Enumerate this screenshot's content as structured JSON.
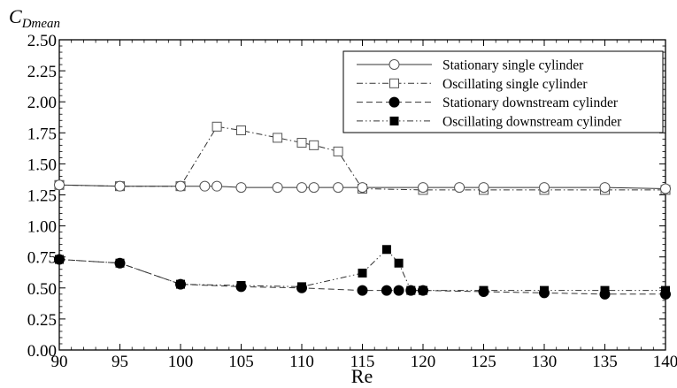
{
  "chart_data": {
    "type": "line",
    "title": "",
    "ylabel": "C",
    "ylabel_subscript": "Dmean",
    "xlabel": "Re",
    "xlim": [
      90,
      140
    ],
    "ylim": [
      0,
      2.5
    ],
    "xticks": [
      90,
      95,
      100,
      105,
      110,
      115,
      120,
      125,
      130,
      135,
      140
    ],
    "xtick_labels": [
      "90",
      "95",
      "100",
      "105",
      "110",
      "115",
      "120",
      "125",
      "130",
      "135",
      "140"
    ],
    "yticks": [
      0,
      0.25,
      0.5,
      0.75,
      1.0,
      1.25,
      1.5,
      1.75,
      2.0,
      2.25,
      2.5
    ],
    "ytick_labels": [
      "0.00",
      "0.25",
      "0.50",
      "0.75",
      "1.00",
      "1.25",
      "1.50",
      "1.75",
      "2.00",
      "2.25",
      "2.50"
    ],
    "grid": false,
    "legend_position": "top-right",
    "series": [
      {
        "name": "Stationary single cylinder",
        "line_style": "solid",
        "marker": "open-circle",
        "color": "#000000",
        "x": [
          90,
          95,
          100,
          102,
          103,
          105,
          108,
          110,
          111,
          113,
          115,
          120,
          123,
          125,
          130,
          135,
          140
        ],
        "y": [
          1.33,
          1.32,
          1.32,
          1.32,
          1.32,
          1.31,
          1.31,
          1.31,
          1.31,
          1.31,
          1.31,
          1.31,
          1.31,
          1.31,
          1.31,
          1.31,
          1.3
        ]
      },
      {
        "name": "Oscillating single cylinder",
        "line_style": "dash-dot",
        "marker": "open-square",
        "color": "#000000",
        "x": [
          90,
          95,
          100,
          103,
          105,
          108,
          110,
          111,
          113,
          115,
          120,
          125,
          130,
          135,
          140
        ],
        "y": [
          1.33,
          1.32,
          1.32,
          1.8,
          1.77,
          1.71,
          1.67,
          1.65,
          1.6,
          1.3,
          1.29,
          1.29,
          1.29,
          1.29,
          1.29
        ]
      },
      {
        "name": "Stationary downstream cylinder",
        "line_style": "dashed",
        "marker": "filled-circle",
        "color": "#000000",
        "x": [
          90,
          95,
          100,
          105,
          110,
          115,
          117,
          118,
          119,
          120,
          125,
          130,
          135,
          140
        ],
        "y": [
          0.73,
          0.7,
          0.53,
          0.51,
          0.5,
          0.48,
          0.48,
          0.48,
          0.48,
          0.48,
          0.47,
          0.46,
          0.45,
          0.45
        ]
      },
      {
        "name": "Oscillating downstream cylinder",
        "line_style": "dash-dot-dot",
        "marker": "filled-square",
        "color": "#000000",
        "x": [
          90,
          95,
          100,
          105,
          110,
          115,
          117,
          118,
          119,
          120,
          125,
          130,
          135,
          140
        ],
        "y": [
          0.73,
          0.7,
          0.53,
          0.52,
          0.51,
          0.62,
          0.81,
          0.7,
          0.48,
          0.48,
          0.48,
          0.48,
          0.48,
          0.48
        ]
      }
    ]
  }
}
